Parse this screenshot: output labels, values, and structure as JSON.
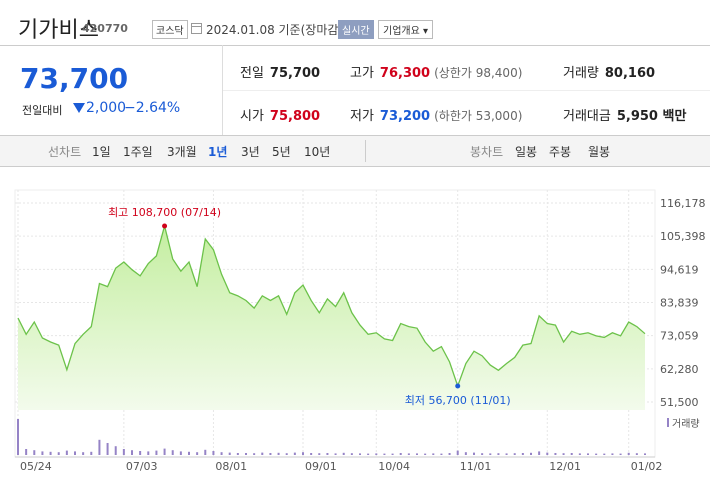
{
  "header": {
    "name": "기가비스",
    "code": "420770",
    "market": "코스닥",
    "date": "2024.01.08 기준(장마감)",
    "realtime": "실시간",
    "overview": "기업개요"
  },
  "quote": {
    "price": "73,700",
    "change_label": "전일대비",
    "change": "2,000",
    "change_pct": "−2.64%",
    "stats": [
      {
        "label": "전일",
        "value": "75,700"
      },
      {
        "label": "고가",
        "value": "76,300",
        "note": "(상한가 98,400)"
      },
      {
        "label": "거래량",
        "value": "80,160"
      },
      {
        "label": "시가",
        "value": "75,800"
      },
      {
        "label": "저가",
        "value": "73,200",
        "note": "(하한가 53,000)"
      },
      {
        "label": "거래대금",
        "value": "5,950 백만"
      }
    ]
  },
  "tabs": {
    "line_label": "선차트",
    "periods": [
      "1일",
      "1주일",
      "3개월",
      "1년",
      "3년",
      "5년",
      "10년"
    ],
    "selected": 3,
    "candle_label": "봉차트",
    "candles": [
      "일봉",
      "주봉",
      "월봉"
    ]
  },
  "chart_data": {
    "type": "area",
    "color": "#6cc24a",
    "values": [
      78800,
      73500,
      77500,
      72300,
      71000,
      70000,
      62000,
      70500,
      73500,
      76000,
      90000,
      89000,
      95000,
      97000,
      94500,
      92500,
      96500,
      99000,
      108700,
      98000,
      94000,
      97000,
      89000,
      104500,
      101000,
      93000,
      87000,
      86000,
      84500,
      82000,
      86000,
      84500,
      86000,
      80000,
      87000,
      89500,
      84500,
      80500,
      85000,
      82500,
      87000,
      80500,
      76500,
      73500,
      74000,
      72000,
      71500,
      77000,
      76000,
      75500,
      71000,
      68000,
      69500,
      64500,
      56700,
      64000,
      68000,
      66500,
      63500,
      61800,
      64000,
      66000,
      70000,
      70500,
      79500,
      77000,
      76500,
      71000,
      74500,
      73500,
      74000,
      73000,
      72500,
      74000,
      73000,
      77500,
      76000,
      73700
    ],
    "xlim": [
      0,
      77
    ],
    "xticks": [
      {
        "value": 0,
        "label": "05/24"
      },
      {
        "value": 13,
        "label": "07/03"
      },
      {
        "value": 24,
        "label": "08/01"
      },
      {
        "value": 35,
        "label": "09/01"
      },
      {
        "value": 44,
        "label": "10/04"
      },
      {
        "value": 54,
        "label": "11/01"
      },
      {
        "value": 65,
        "label": "12/01"
      },
      {
        "value": 75,
        "label": "01/02"
      }
    ],
    "ylim": [
      51500,
      116178
    ],
    "yticks": [
      {
        "value": 116178,
        "label": "116,178"
      },
      {
        "value": 105398,
        "label": "105,398"
      },
      {
        "value": 94619,
        "label": "94,619"
      },
      {
        "value": 83839,
        "label": "83,839"
      },
      {
        "value": 73059,
        "label": "73,059"
      },
      {
        "value": 62280,
        "label": "62,280"
      },
      {
        "value": 51500,
        "label": "51,500"
      }
    ],
    "grid": true,
    "high_label": "최고 108,700 (07/14)",
    "high_color": "#d0021b",
    "low_label": "최저 56,700 (11/01)",
    "low_color": "#1a5bd6",
    "volume": {
      "name": "거래량",
      "color": "#9583c6",
      "lim": [
        0,
        1000000
      ],
      "values": [
        900000,
        150000,
        120000,
        90000,
        80000,
        70000,
        110000,
        90000,
        70000,
        80000,
        380000,
        300000,
        220000,
        150000,
        120000,
        100000,
        90000,
        110000,
        160000,
        120000,
        90000,
        80000,
        70000,
        130000,
        100000,
        70000,
        60000,
        50000,
        50000,
        45000,
        60000,
        50000,
        55000,
        45000,
        60000,
        70000,
        50000,
        45000,
        50000,
        40000,
        55000,
        45000,
        40000,
        35000,
        40000,
        35000,
        35000,
        50000,
        40000,
        40000,
        35000,
        40000,
        35000,
        50000,
        110000,
        70000,
        60000,
        45000,
        40000,
        45000,
        40000,
        45000,
        50000,
        55000,
        90000,
        60000,
        50000,
        45000,
        50000,
        40000,
        40000,
        35000,
        35000,
        40000,
        35000,
        55000,
        45000,
        40000
      ]
    }
  }
}
